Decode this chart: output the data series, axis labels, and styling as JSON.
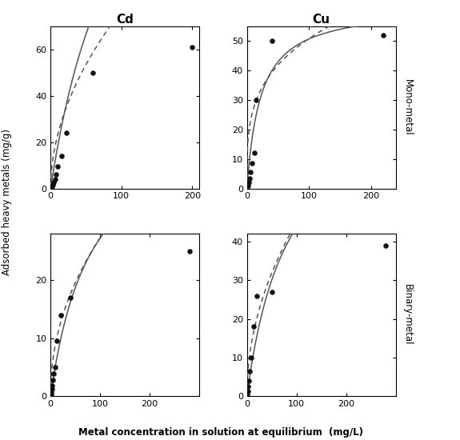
{
  "col_titles": [
    "Cd",
    "Cu"
  ],
  "row_labels": [
    "Mono-metal",
    "Binary-metal"
  ],
  "xlabel": "Metal concentration in solution at equilibrium  (mg/L)",
  "ylabel": "Adsorbed heavy metals (mg/g)",
  "plots": {
    "mono_cd": {
      "scatter_x": [
        1.0,
        2.0,
        3.0,
        4.5,
        6.0,
        8.0,
        10.0,
        15.0,
        22.0,
        60.0,
        200.0
      ],
      "scatter_y": [
        0.3,
        0.8,
        1.5,
        2.5,
        4.0,
        6.0,
        9.5,
        14.0,
        24.0,
        50.0,
        61.0
      ],
      "langmuir_params": {
        "qmax": 200.0,
        "KL": 0.01
      },
      "freundlich_params": {
        "KF": 7.0,
        "n": 0.52
      },
      "xlim": [
        0,
        210
      ],
      "ylim": [
        0,
        70
      ],
      "xticks": [
        0,
        100,
        200
      ],
      "yticks": [
        0,
        20,
        40,
        60
      ]
    },
    "mono_cu": {
      "scatter_x": [
        1.0,
        2.0,
        3.0,
        4.5,
        6.0,
        8.0,
        12.0,
        15.0,
        40.0,
        220.0
      ],
      "scatter_y": [
        0.5,
        1.0,
        2.0,
        3.5,
        5.5,
        8.5,
        12.0,
        30.0,
        50.0,
        52.0
      ],
      "langmuir_params": {
        "qmax": 62.0,
        "KL": 0.045
      },
      "freundlich_params": {
        "KF": 14.0,
        "n": 0.28
      },
      "xlim": [
        0,
        240
      ],
      "ylim": [
        0,
        55
      ],
      "xticks": [
        0,
        100,
        200
      ],
      "yticks": [
        0,
        10,
        20,
        30,
        40,
        50
      ]
    },
    "binary_cd": {
      "scatter_x": [
        1.0,
        1.5,
        2.5,
        3.5,
        5.0,
        6.5,
        9.0,
        12.0,
        20.0,
        40.0,
        280.0
      ],
      "scatter_y": [
        0.3,
        0.7,
        1.2,
        1.8,
        2.8,
        3.8,
        5.0,
        9.5,
        14.0,
        17.0,
        25.0
      ],
      "langmuir_params": {
        "qmax": 50.0,
        "KL": 0.012
      },
      "freundlich_params": {
        "KF": 3.0,
        "n": 0.48
      },
      "xlim": [
        0,
        300
      ],
      "ylim": [
        0,
        28
      ],
      "xticks": [
        0,
        100,
        200
      ],
      "yticks": [
        0,
        10,
        20
      ]
    },
    "binary_cu": {
      "scatter_x": [
        1.0,
        2.0,
        3.0,
        4.5,
        6.0,
        9.0,
        14.0,
        20.0,
        50.0,
        280.0
      ],
      "scatter_y": [
        0.5,
        1.2,
        2.5,
        4.0,
        6.5,
        10.0,
        18.0,
        26.0,
        27.0,
        39.0
      ],
      "langmuir_params": {
        "qmax": 80.0,
        "KL": 0.012
      },
      "freundlich_params": {
        "KF": 4.5,
        "n": 0.5
      },
      "xlim": [
        0,
        300
      ],
      "ylim": [
        0,
        42
      ],
      "xticks": [
        0,
        100,
        200
      ],
      "yticks": [
        0,
        10,
        20,
        30,
        40
      ]
    }
  },
  "line_color": "#555555",
  "scatter_color": "#111111",
  "scatter_size": 22,
  "font_size_title": 11,
  "font_size_label": 8.5,
  "font_size_tick": 8,
  "font_size_row_label": 8.5
}
